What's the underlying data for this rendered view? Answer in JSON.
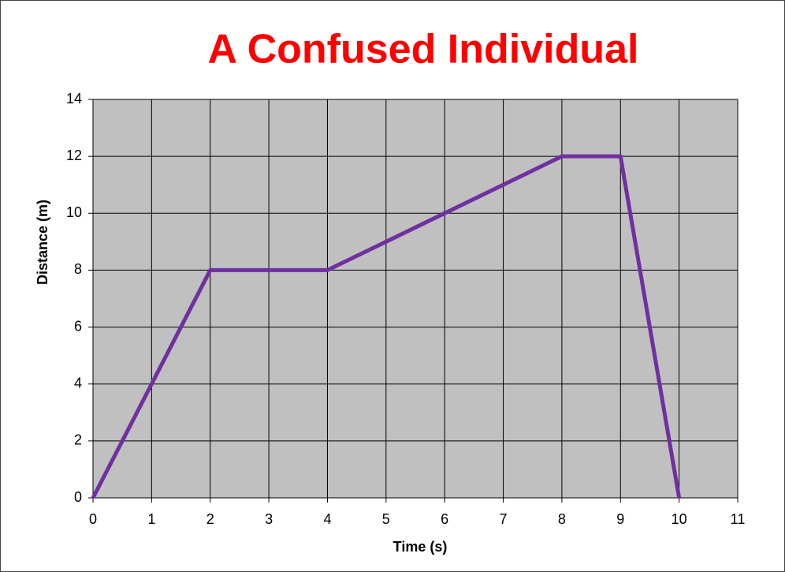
{
  "chart_data": {
    "type": "line",
    "title": "A Confused Individual",
    "x_label": "Time (s)",
    "y_label": "Distance (m)",
    "x": [
      0,
      1,
      2,
      3,
      4,
      5,
      6,
      7,
      8,
      9,
      10
    ],
    "series": [
      {
        "name": "Distance",
        "color": "#7030a0",
        "values": [
          0,
          4,
          8,
          8,
          8,
          9,
          10,
          11,
          12,
          12,
          0
        ]
      }
    ],
    "xlim": [
      0,
      11
    ],
    "xticks": [
      0,
      1,
      2,
      3,
      4,
      5,
      6,
      7,
      8,
      9,
      10,
      11
    ],
    "ylim": [
      0,
      14
    ],
    "yticks": [
      0,
      2,
      4,
      6,
      8,
      10,
      12,
      14
    ],
    "grid": true,
    "plot_background": "#c0c0c0"
  }
}
